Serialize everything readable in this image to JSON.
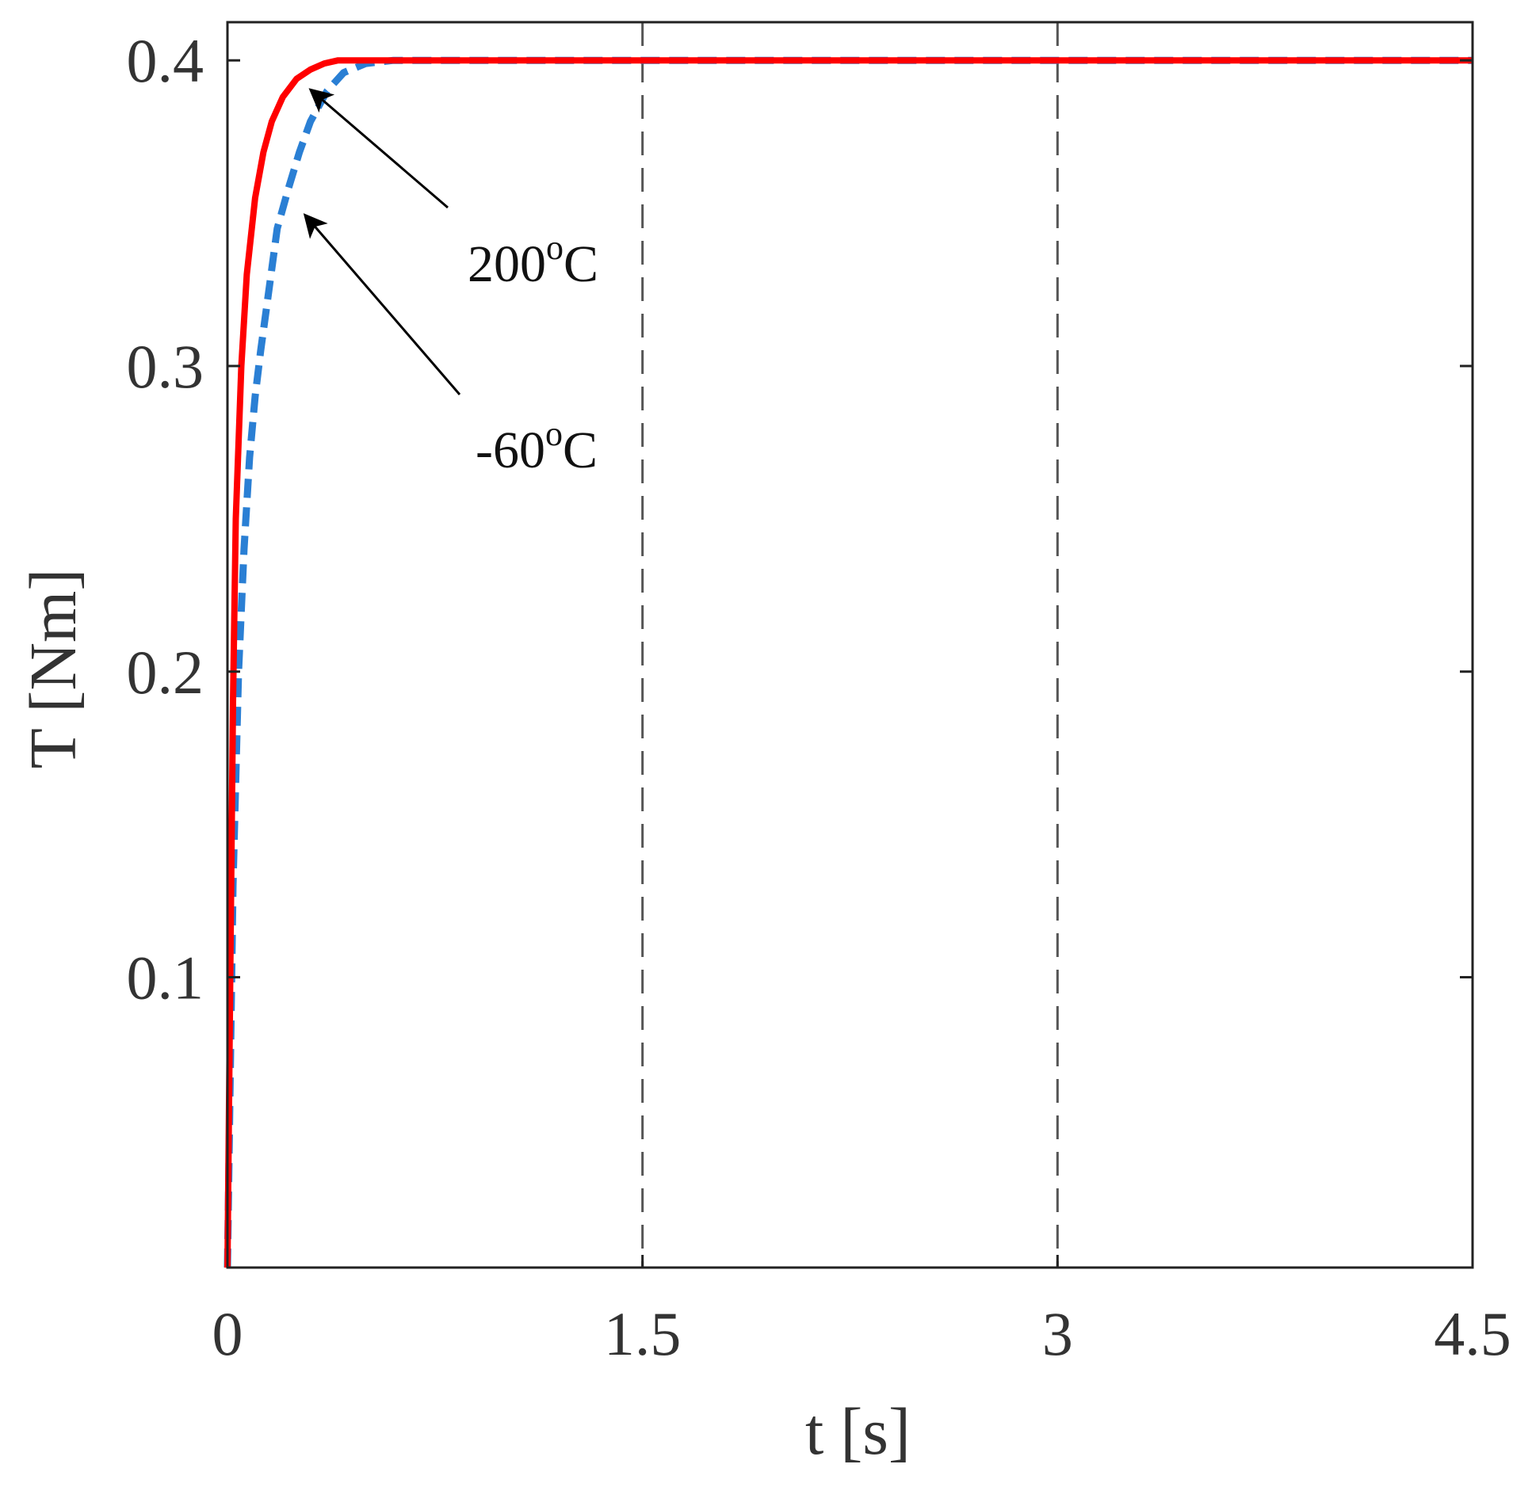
{
  "chart_data": {
    "type": "line",
    "title": "",
    "xlabel": "t [s]",
    "ylabel": "T [Nm]",
    "xlim": [
      0,
      4.5
    ],
    "ylim": [
      0.005,
      0.4125
    ],
    "xticks": [
      0,
      1.5,
      3,
      4.5
    ],
    "xtick_labels": [
      "0",
      "1.5",
      "3",
      "4.5"
    ],
    "yticks": [
      0.1,
      0.2,
      0.3,
      0.4
    ],
    "ytick_labels": [
      "0.1",
      "0.2",
      "0.3",
      "0.4"
    ],
    "grid": false,
    "vlines": [
      1.5,
      3.0
    ],
    "series": [
      {
        "color": "#2a7fd4",
        "dash": "dashed",
        "x": [
          0,
          0.02,
          0.04,
          0.06,
          0.08,
          0.1,
          0.12,
          0.15,
          0.18,
          0.22,
          0.26,
          0.3,
          0.36,
          0.42,
          0.5,
          0.6,
          0.8,
          1.0,
          1.5,
          2.0,
          3.0,
          4.5
        ],
        "y": [
          0.005,
          0.13,
          0.2,
          0.24,
          0.27,
          0.29,
          0.305,
          0.325,
          0.345,
          0.358,
          0.37,
          0.38,
          0.39,
          0.396,
          0.399,
          0.4,
          0.4,
          0.4,
          0.4,
          0.4,
          0.4,
          0.4
        ]
      },
      {
        "color": "#ff0000",
        "dash": "solid",
        "x": [
          0,
          0.01,
          0.02,
          0.03,
          0.05,
          0.07,
          0.1,
          0.13,
          0.16,
          0.2,
          0.25,
          0.3,
          0.35,
          0.4,
          0.5,
          0.6,
          0.8,
          1.0,
          1.5,
          2.0,
          3.0,
          4.5
        ],
        "y": [
          0.005,
          0.1,
          0.19,
          0.25,
          0.3,
          0.33,
          0.355,
          0.37,
          0.38,
          0.388,
          0.394,
          0.397,
          0.399,
          0.4,
          0.4,
          0.4,
          0.4,
          0.4,
          0.4,
          0.4,
          0.4,
          0.4
        ]
      }
    ],
    "annotations": [
      {
        "text_main": "200",
        "text_sup": "o",
        "text_unit": "C",
        "arrow_to": [
          0.26,
          0.393
        ],
        "series": 1
      },
      {
        "text_main": "-60",
        "text_sup": "o",
        "text_unit": "C",
        "arrow_to": [
          0.24,
          0.352
        ],
        "series": 0
      }
    ]
  }
}
